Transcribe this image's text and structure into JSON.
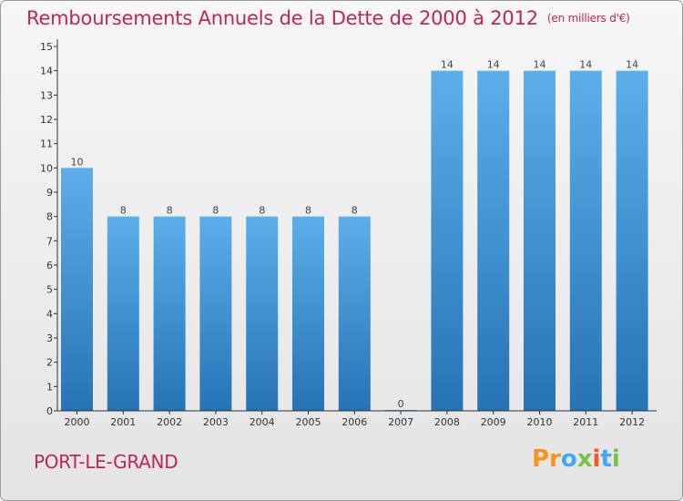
{
  "title": "Remboursements Annuels de la Dette de 2000 à 2012",
  "unit": "(en milliers d'€)",
  "city": "PORT-LE-GRAND",
  "logo": {
    "letters": [
      "P",
      "r",
      "o",
      "x",
      "i",
      "t",
      "i"
    ],
    "colors": [
      "#f7941d",
      "#f7941d",
      "#3fa9f5",
      "#7ac143",
      "#f15a24",
      "#3fa9f5",
      "#7ac143"
    ]
  },
  "colors": {
    "title": "#c0245b",
    "bar_top": "#5daeea",
    "bar_bottom": "#2673b5",
    "axis": "#333333"
  },
  "chart_data": {
    "type": "bar",
    "categories": [
      "2000",
      "2001",
      "2002",
      "2003",
      "2004",
      "2005",
      "2006",
      "2007",
      "2008",
      "2009",
      "2010",
      "2011",
      "2012"
    ],
    "values": [
      10,
      8,
      8,
      8,
      8,
      8,
      8,
      0,
      14,
      14,
      14,
      14,
      14
    ],
    "data_labels": [
      "10",
      "8",
      "8",
      "8",
      "8",
      "8",
      "8",
      "0",
      "14",
      "14",
      "14",
      "14",
      "14"
    ],
    "yticks": [
      "0",
      "1",
      "2",
      "3",
      "4",
      "5",
      "6",
      "7",
      "8",
      "9",
      "10",
      "11",
      "12",
      "13",
      "14",
      "15"
    ],
    "ylim": [
      0,
      15
    ],
    "grid": false
  }
}
